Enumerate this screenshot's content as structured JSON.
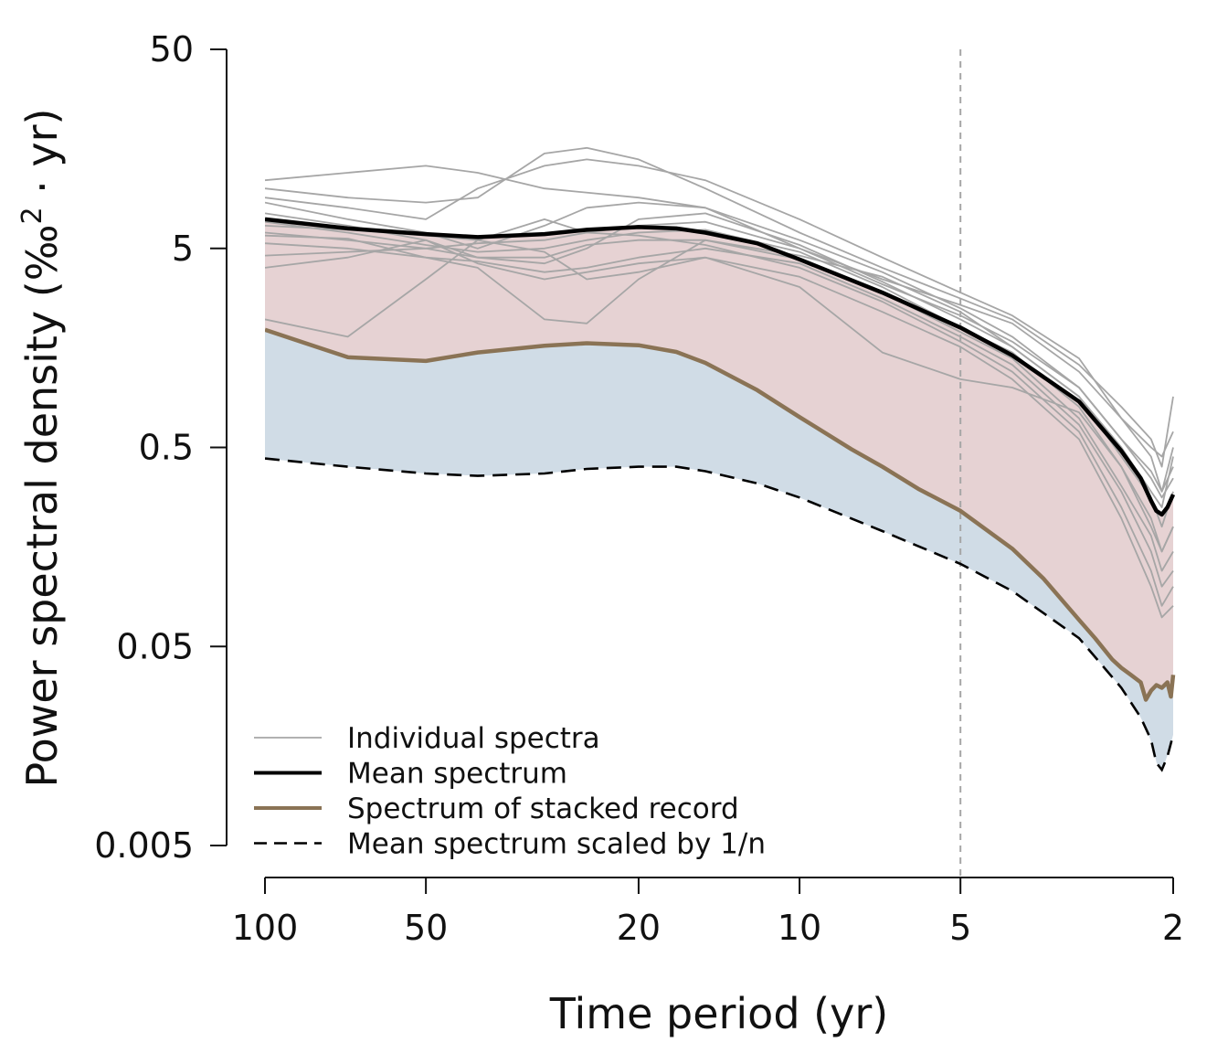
{
  "chart_data": {
    "type": "line",
    "xlabel": "Time period (yr)",
    "ylabel": "Power spectral density (‰² · yr)",
    "ylabel_main": "Power spectral density (‰",
    "ylabel_sup": "2",
    "ylabel_tail": " · yr)",
    "x_scale": "log",
    "y_scale": "log",
    "x_reversed": true,
    "xlim": [
      100,
      2
    ],
    "ylim": [
      0.005,
      50
    ],
    "x_ticks": [
      100,
      50,
      20,
      10,
      5,
      2
    ],
    "x_tick_labels": [
      "100",
      "50",
      "20",
      "10",
      "5",
      "2"
    ],
    "y_ticks": [
      50,
      5,
      0.5,
      0.05,
      0.005
    ],
    "y_tick_labels": [
      "50",
      "5",
      "0.5",
      "0.05",
      "0.005"
    ],
    "reference_line_x": 5,
    "colors": {
      "individual": "#a6a6a6",
      "mean": "#000000",
      "stacked": "#8a7355",
      "scaled": "#000000",
      "fill_red": "#e6d2d3",
      "fill_blue": "#d0dce6",
      "fill_overlap": "#cfc6d0",
      "refline": "#a6a6a6"
    },
    "legend": [
      {
        "label": "Individual spectra",
        "style": "individual"
      },
      {
        "label": "Mean spectrum",
        "style": "mean"
      },
      {
        "label": "Spectrum of stacked record",
        "style": "stacked"
      },
      {
        "label": "Mean spectrum scaled by 1/n",
        "style": "scaled"
      }
    ],
    "series": [
      {
        "name": "Mean spectrum",
        "style": "mean",
        "points": [
          [
            100,
            7.0
          ],
          [
            70,
            6.3
          ],
          [
            50,
            5.9
          ],
          [
            40,
            5.7
          ],
          [
            30,
            5.9
          ],
          [
            25,
            6.2
          ],
          [
            20,
            6.4
          ],
          [
            17,
            6.3
          ],
          [
            15,
            6.0
          ],
          [
            12,
            5.3
          ],
          [
            10,
            4.4
          ],
          [
            7,
            3.0
          ],
          [
            5,
            2.0
          ],
          [
            4,
            1.45
          ],
          [
            3,
            0.85
          ],
          [
            2.5,
            0.48
          ],
          [
            2.3,
            0.35
          ],
          [
            2.2,
            0.27
          ],
          [
            2.15,
            0.24
          ],
          [
            2.1,
            0.23
          ],
          [
            2.05,
            0.25
          ],
          [
            2.0,
            0.29
          ]
        ]
      },
      {
        "name": "Spectrum of stacked record",
        "style": "stacked",
        "points": [
          [
            100,
            1.95
          ],
          [
            70,
            1.42
          ],
          [
            50,
            1.36
          ],
          [
            40,
            1.5
          ],
          [
            30,
            1.62
          ],
          [
            25,
            1.67
          ],
          [
            20,
            1.63
          ],
          [
            17,
            1.51
          ],
          [
            15,
            1.33
          ],
          [
            12,
            0.97
          ],
          [
            10,
            0.71
          ],
          [
            8,
            0.49
          ],
          [
            7,
            0.4
          ],
          [
            6,
            0.31
          ],
          [
            5,
            0.24
          ],
          [
            4,
            0.155
          ],
          [
            3.5,
            0.11
          ],
          [
            3,
            0.068
          ],
          [
            2.8,
            0.055
          ],
          [
            2.6,
            0.043
          ],
          [
            2.5,
            0.039
          ],
          [
            2.4,
            0.036
          ],
          [
            2.3,
            0.033
          ],
          [
            2.25,
            0.027
          ],
          [
            2.2,
            0.03
          ],
          [
            2.15,
            0.032
          ],
          [
            2.1,
            0.031
          ],
          [
            2.05,
            0.033
          ],
          [
            2.02,
            0.028
          ],
          [
            2.0,
            0.036
          ]
        ]
      },
      {
        "name": "Mean spectrum scaled by 1/n",
        "style": "scaled",
        "points": [
          [
            100,
            0.44
          ],
          [
            70,
            0.4
          ],
          [
            50,
            0.37
          ],
          [
            40,
            0.36
          ],
          [
            30,
            0.37
          ],
          [
            25,
            0.39
          ],
          [
            20,
            0.4
          ],
          [
            17,
            0.4
          ],
          [
            15,
            0.38
          ],
          [
            12,
            0.33
          ],
          [
            10,
            0.28
          ],
          [
            7,
            0.19
          ],
          [
            5,
            0.13
          ],
          [
            4,
            0.095
          ],
          [
            3,
            0.055
          ],
          [
            2.5,
            0.031
          ],
          [
            2.3,
            0.022
          ],
          [
            2.2,
            0.017
          ],
          [
            2.15,
            0.013
          ],
          [
            2.1,
            0.012
          ],
          [
            2.05,
            0.014
          ],
          [
            2.0,
            0.018
          ]
        ]
      },
      {
        "style": "individual",
        "points": [
          [
            100,
            11
          ],
          [
            70,
            12
          ],
          [
            50,
            13
          ],
          [
            40,
            12
          ],
          [
            30,
            10
          ],
          [
            20,
            9
          ],
          [
            15,
            8
          ],
          [
            10,
            5
          ],
          [
            7,
            3.5
          ],
          [
            5,
            2.6
          ],
          [
            4,
            2.1
          ],
          [
            3,
            1.2
          ],
          [
            2.5,
            0.7
          ],
          [
            2.2,
            0.5
          ],
          [
            2.1,
            0.45
          ],
          [
            2.0,
            0.6
          ]
        ]
      },
      {
        "style": "individual",
        "points": [
          [
            100,
            10
          ],
          [
            70,
            9
          ],
          [
            50,
            8.5
          ],
          [
            40,
            9
          ],
          [
            30,
            15
          ],
          [
            25,
            16
          ],
          [
            20,
            14
          ],
          [
            15,
            10
          ],
          [
            10,
            6
          ],
          [
            7,
            4
          ],
          [
            5,
            2.8
          ],
          [
            4,
            2.2
          ],
          [
            3,
            1.3
          ],
          [
            2.5,
            0.8
          ],
          [
            2.2,
            0.55
          ],
          [
            2.1,
            0.4
          ],
          [
            2.0,
            0.9
          ]
        ]
      },
      {
        "style": "individual",
        "points": [
          [
            100,
            9
          ],
          [
            70,
            8
          ],
          [
            50,
            7
          ],
          [
            40,
            10
          ],
          [
            30,
            13
          ],
          [
            25,
            14
          ],
          [
            20,
            13
          ],
          [
            15,
            11
          ],
          [
            10,
            7
          ],
          [
            7,
            4.5
          ],
          [
            5,
            3.0
          ],
          [
            4,
            2.3
          ],
          [
            3,
            1.4
          ],
          [
            2.5,
            0.7
          ],
          [
            2.2,
            0.45
          ],
          [
            2.1,
            0.3
          ],
          [
            2.0,
            0.5
          ]
        ]
      },
      {
        "style": "individual",
        "points": [
          [
            100,
            8.5
          ],
          [
            70,
            7
          ],
          [
            50,
            6
          ],
          [
            40,
            5
          ],
          [
            30,
            6.5
          ],
          [
            25,
            8
          ],
          [
            20,
            8.5
          ],
          [
            15,
            8
          ],
          [
            10,
            5.5
          ],
          [
            7,
            3.8
          ],
          [
            5,
            2.5
          ],
          [
            4,
            1.8
          ],
          [
            3,
            1.0
          ],
          [
            2.5,
            0.55
          ],
          [
            2.2,
            0.35
          ],
          [
            2.1,
            0.28
          ],
          [
            2.0,
            0.35
          ]
        ]
      },
      {
        "style": "individual",
        "points": [
          [
            100,
            7.5
          ],
          [
            70,
            6.5
          ],
          [
            50,
            5.5
          ],
          [
            40,
            4.5
          ],
          [
            30,
            4.2
          ],
          [
            25,
            5
          ],
          [
            20,
            7
          ],
          [
            15,
            7.5
          ],
          [
            10,
            5.2
          ],
          [
            7,
            3.4
          ],
          [
            5,
            2.2
          ],
          [
            4,
            1.6
          ],
          [
            3,
            0.9
          ],
          [
            2.5,
            0.45
          ],
          [
            2.2,
            0.28
          ],
          [
            2.1,
            0.2
          ],
          [
            2.0,
            0.3
          ]
        ]
      },
      {
        "style": "individual",
        "points": [
          [
            100,
            6.8
          ],
          [
            70,
            6
          ],
          [
            50,
            5.2
          ],
          [
            40,
            4.8
          ],
          [
            30,
            5
          ],
          [
            25,
            5.5
          ],
          [
            20,
            6
          ],
          [
            15,
            6.2
          ],
          [
            10,
            4.8
          ],
          [
            7,
            3.2
          ],
          [
            5,
            2.0
          ],
          [
            4,
            1.5
          ],
          [
            3,
            0.8
          ],
          [
            2.5,
            0.4
          ],
          [
            2.2,
            0.22
          ],
          [
            2.1,
            0.15
          ],
          [
            2.0,
            0.2
          ]
        ]
      },
      {
        "style": "individual",
        "points": [
          [
            100,
            6.0
          ],
          [
            70,
            5.5
          ],
          [
            50,
            5
          ],
          [
            40,
            4.5
          ],
          [
            30,
            4.5
          ],
          [
            25,
            5.2
          ],
          [
            20,
            5.5
          ],
          [
            15,
            5.5
          ],
          [
            10,
            4.4
          ],
          [
            7,
            3.0
          ],
          [
            5,
            1.9
          ],
          [
            4,
            1.4
          ],
          [
            3,
            0.7
          ],
          [
            2.5,
            0.32
          ],
          [
            2.2,
            0.18
          ],
          [
            2.1,
            0.12
          ],
          [
            2.0,
            0.15
          ]
        ]
      },
      {
        "style": "individual",
        "points": [
          [
            100,
            5.3
          ],
          [
            70,
            5
          ],
          [
            50,
            4.5
          ],
          [
            40,
            4.3
          ],
          [
            30,
            3.8
          ],
          [
            25,
            4
          ],
          [
            20,
            4.5
          ],
          [
            15,
            5
          ],
          [
            10,
            4.2
          ],
          [
            7,
            2.8
          ],
          [
            5,
            1.8
          ],
          [
            4,
            1.3
          ],
          [
            3,
            0.65
          ],
          [
            2.5,
            0.3
          ],
          [
            2.2,
            0.15
          ],
          [
            2.1,
            0.1
          ],
          [
            2.0,
            0.12
          ]
        ]
      },
      {
        "style": "individual",
        "points": [
          [
            100,
            4.6
          ],
          [
            70,
            4.8
          ],
          [
            50,
            5
          ],
          [
            40,
            5.3
          ],
          [
            30,
            5.5
          ],
          [
            25,
            6
          ],
          [
            20,
            5.8
          ],
          [
            15,
            5.2
          ],
          [
            10,
            4.0
          ],
          [
            7,
            2.7
          ],
          [
            5,
            1.7
          ],
          [
            4,
            1.2
          ],
          [
            3,
            0.6
          ],
          [
            2.5,
            0.25
          ],
          [
            2.2,
            0.12
          ],
          [
            2.1,
            0.08
          ],
          [
            2.0,
            0.1
          ]
        ]
      },
      {
        "style": "individual",
        "points": [
          [
            100,
            4.0
          ],
          [
            70,
            4.5
          ],
          [
            50,
            5.5
          ],
          [
            40,
            4.2
          ],
          [
            30,
            3.5
          ],
          [
            25,
            3.8
          ],
          [
            20,
            4.2
          ],
          [
            15,
            4.5
          ],
          [
            10,
            3.6
          ],
          [
            7,
            2.4
          ],
          [
            5,
            1.6
          ],
          [
            4,
            1.1
          ],
          [
            3,
            0.55
          ],
          [
            2.5,
            0.22
          ],
          [
            2.2,
            0.1
          ],
          [
            2.1,
            0.07
          ],
          [
            2.0,
            0.08
          ]
        ]
      },
      {
        "style": "individual",
        "points": [
          [
            100,
            2.2
          ],
          [
            70,
            1.8
          ],
          [
            50,
            3.5
          ],
          [
            40,
            5.5
          ],
          [
            30,
            7
          ],
          [
            25,
            6
          ],
          [
            20,
            6.5
          ],
          [
            15,
            6.8
          ],
          [
            10,
            5.0
          ],
          [
            7,
            3.3
          ],
          [
            5,
            2.3
          ],
          [
            4,
            1.7
          ],
          [
            3,
            1.0
          ],
          [
            2.5,
            0.55
          ],
          [
            2.2,
            0.38
          ],
          [
            2.1,
            0.3
          ],
          [
            2.0,
            0.4
          ]
        ]
      },
      {
        "style": "individual",
        "points": [
          [
            100,
            6.5
          ],
          [
            70,
            6.2
          ],
          [
            50,
            5.8
          ],
          [
            40,
            5.5
          ],
          [
            30,
            4.8
          ],
          [
            25,
            3.5
          ],
          [
            20,
            3.8
          ],
          [
            15,
            4.5
          ],
          [
            10,
            3.2
          ],
          [
            7,
            1.5
          ],
          [
            5,
            1.1
          ],
          [
            4,
            1.0
          ],
          [
            3,
            0.75
          ],
          [
            2.5,
            0.4
          ],
          [
            2.2,
            0.2
          ],
          [
            2.1,
            0.15
          ],
          [
            2.0,
            0.2
          ]
        ]
      },
      {
        "style": "individual",
        "points": [
          [
            100,
            5.8
          ],
          [
            70,
            5.6
          ],
          [
            50,
            4.5
          ],
          [
            40,
            4.0
          ],
          [
            30,
            2.2
          ],
          [
            25,
            2.1
          ],
          [
            20,
            3.5
          ],
          [
            15,
            5.5
          ],
          [
            10,
            4.6
          ],
          [
            7,
            3.6
          ],
          [
            5,
            2.4
          ],
          [
            4,
            1.6
          ],
          [
            3,
            0.9
          ],
          [
            2.5,
            0.5
          ],
          [
            2.2,
            0.3
          ],
          [
            2.1,
            0.25
          ],
          [
            2.0,
            0.45
          ]
        ]
      }
    ]
  }
}
